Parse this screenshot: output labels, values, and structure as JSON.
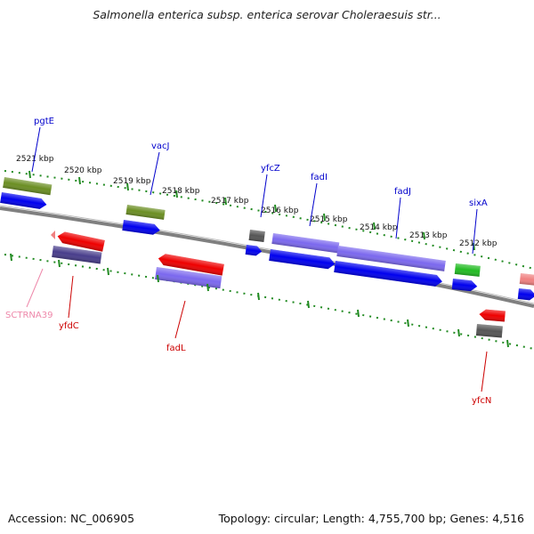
{
  "title": "Salmonella enterica subsp. enterica serovar Choleraesuis str...",
  "footer": {
    "accession": "Accession: NC_006905",
    "summary": "Topology: circular; Length: 4,755,700 bp; Genes: 4,516"
  },
  "colors": {
    "backbone": "#808080",
    "tick_green": "#228b22",
    "label_blue": "#0000cc",
    "label_red": "#cc0000",
    "label_pink": "#ee88aa",
    "gene_blue": "#0000ee",
    "gene_red": "#ee0000",
    "gene_olive": "#6b8e23",
    "gene_purple": "#7b68ee",
    "gene_navy": "#483d8b",
    "gene_gray": "#555555",
    "gene_green": "#22bb22",
    "gene_pink": "#f08080"
  },
  "scale": {
    "ticks": [
      "2521 kbp",
      "2520 kbp",
      "2519 kbp",
      "2518 kbp",
      "2517 kbp",
      "2516 kbp",
      "2515 kbp",
      "2514 kbp",
      "2513 kbp",
      "2512 kbp"
    ]
  },
  "labels": {
    "top": [
      "pgtE",
      "vacJ",
      "yfcZ",
      "fadI",
      "fadJ",
      "sixA"
    ],
    "bottom": [
      "SCTRNA39",
      "yfdC",
      "fadL",
      "yfcN"
    ]
  }
}
